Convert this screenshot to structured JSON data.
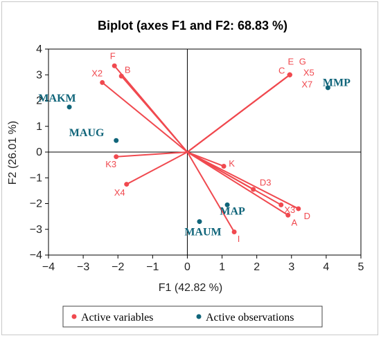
{
  "chart_data": {
    "type": "scatter",
    "title": "Biplot (axes F1 and F2: 68.83 %)",
    "xlabel": "F1 (42.82 %)",
    "ylabel": "F2 (26.01 %)",
    "xlim": [
      -4,
      5
    ],
    "ylim": [
      -4,
      4
    ],
    "x_ticks": [
      -4,
      -3,
      -2,
      -1,
      0,
      1,
      2,
      3,
      4,
      5
    ],
    "y_ticks": [
      -4,
      -3,
      -2,
      -1,
      0,
      1,
      2,
      3,
      4
    ],
    "grid": false,
    "legend_position": "bottom",
    "colors": {
      "variables": "#f0494f",
      "observations": "#10657a"
    },
    "series": [
      {
        "name": "Active variables",
        "kind": "vectors",
        "points": [
          {
            "label": "F",
            "x": -2.1,
            "y": 3.35,
            "lx": -2.15,
            "ly": 3.72
          },
          {
            "label": "B",
            "x": -1.9,
            "y": 2.95,
            "lx": -1.72,
            "ly": 3.18
          },
          {
            "label": "X2",
            "x": -2.45,
            "y": 2.7,
            "lx": -2.6,
            "ly": 3.05
          },
          {
            "label": "K3",
            "x": -2.05,
            "y": -0.18,
            "lx": -2.2,
            "ly": -0.48
          },
          {
            "label": "X4",
            "x": -1.75,
            "y": -1.25,
            "lx": -1.95,
            "ly": -1.58
          },
          {
            "label": "K",
            "x": 1.05,
            "y": -0.55,
            "lx": 1.28,
            "ly": -0.45
          },
          {
            "label": "D3",
            "x": 1.9,
            "y": -1.45,
            "lx": 2.25,
            "ly": -1.2
          },
          {
            "label": "X3",
            "x": 2.7,
            "y": -2.05,
            "lx": 2.95,
            "ly": -2.25
          },
          {
            "label": "D",
            "x": 3.2,
            "y": -2.2,
            "lx": 3.45,
            "ly": -2.5
          },
          {
            "label": "A",
            "x": 2.9,
            "y": -2.45,
            "lx": 3.08,
            "ly": -2.75
          },
          {
            "label": "I",
            "x": 1.35,
            "y": -3.1,
            "lx": 1.48,
            "ly": -3.38
          },
          {
            "label": "C",
            "x": 2.95,
            "y": 3.0,
            "lx": 2.72,
            "ly": 3.15
          },
          {
            "label": "E",
            "x": 2.95,
            "y": 3.0,
            "lx": 2.98,
            "ly": 3.5
          },
          {
            "label": "G",
            "x": 2.95,
            "y": 3.0,
            "lx": 3.32,
            "ly": 3.5
          },
          {
            "label": "X5",
            "x": 2.95,
            "y": 3.0,
            "lx": 3.5,
            "ly": 3.08
          },
          {
            "label": "X7",
            "x": 2.95,
            "y": 3.0,
            "lx": 3.45,
            "ly": 2.62
          }
        ]
      },
      {
        "name": "Active observations",
        "kind": "points",
        "points": [
          {
            "label": "MAKM",
            "x": -3.4,
            "y": 1.75,
            "lx": -3.75,
            "ly": 2.1
          },
          {
            "label": "MAUG",
            "x": -2.05,
            "y": 0.45,
            "lx": -2.9,
            "ly": 0.75
          },
          {
            "label": "MMP",
            "x": 4.05,
            "y": 2.5,
            "lx": 4.3,
            "ly": 2.7
          },
          {
            "label": "MAP",
            "x": 1.15,
            "y": -2.05,
            "lx": 1.3,
            "ly": -2.3
          },
          {
            "label": "MAUM",
            "x": 0.35,
            "y": -2.7,
            "lx": 0.45,
            "ly": -3.1
          }
        ]
      }
    ]
  }
}
